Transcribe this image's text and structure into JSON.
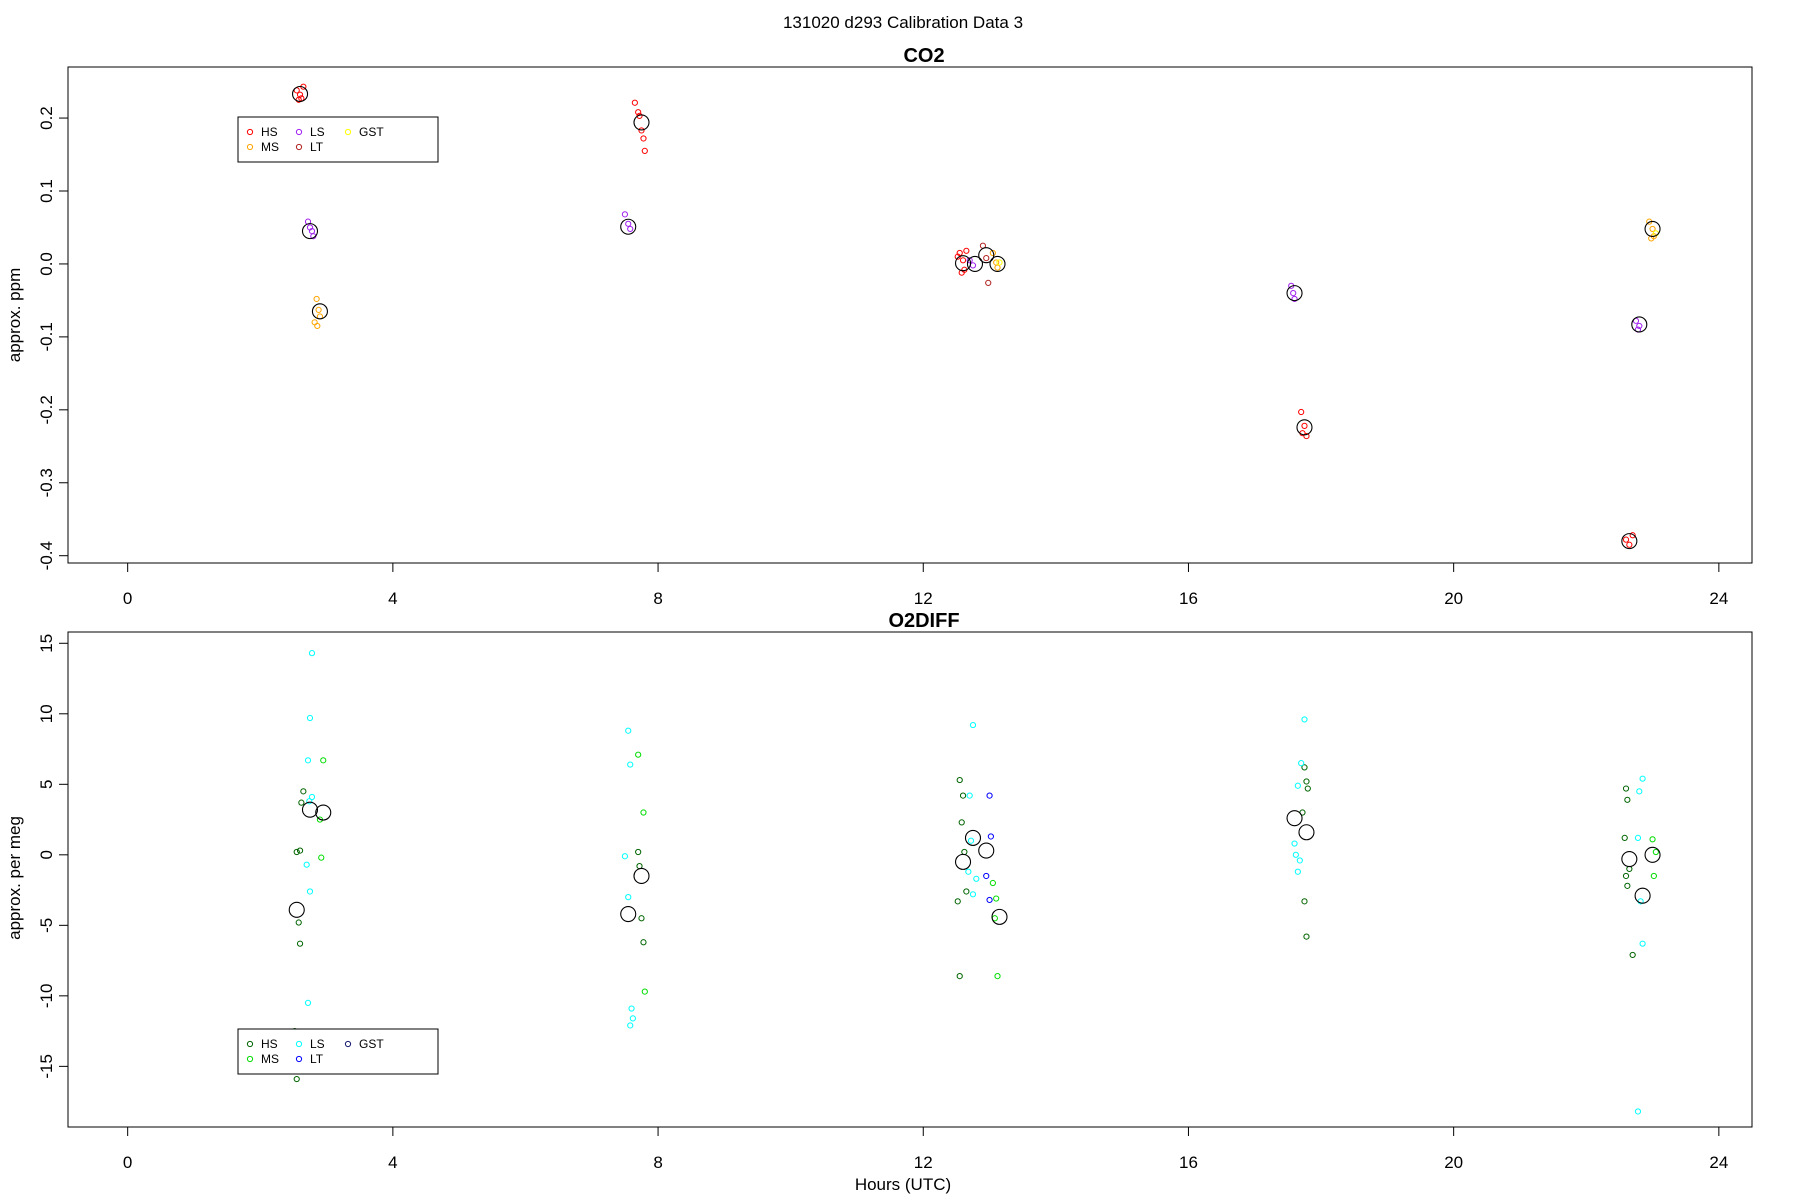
{
  "figure": {
    "title": "131020   d293   Calibration Data 3",
    "xlabel": "Hours (UTC)"
  },
  "chart_data": [
    {
      "type": "scatter",
      "title": "CO2",
      "xlabel": "",
      "ylabel": "approx. ppm",
      "xlim": [
        -0.9,
        24.5
      ],
      "ylim": [
        -0.41,
        0.27
      ],
      "xticks": [
        0,
        4,
        8,
        12,
        16,
        20,
        24
      ],
      "yticks": [
        -0.4,
        -0.3,
        -0.2,
        -0.1,
        0.0,
        0.1,
        0.2
      ],
      "ytick_labels": [
        "-0.4",
        "-0.3",
        "-0.2",
        "-0.1",
        "0.0",
        "0.1",
        "0.2"
      ],
      "legend": {
        "placement": "top-left",
        "entries": [
          {
            "name": "HS",
            "color": "#ff0000"
          },
          {
            "name": "MS",
            "color": "#ffa500"
          },
          {
            "name": "LS",
            "color": "#a020f0"
          },
          {
            "name": "LT",
            "color": "#b22222"
          },
          {
            "name": "GST",
            "color": "#ffff00"
          }
        ]
      },
      "series": [
        {
          "name": "HS",
          "color": "#ff0000",
          "points": [
            [
              2.55,
              0.238
            ],
            [
              2.6,
              0.232
            ],
            [
              2.62,
              0.227
            ],
            [
              2.65,
              0.243
            ],
            [
              2.58,
              0.225
            ],
            [
              7.65,
              0.221
            ],
            [
              7.7,
              0.208
            ],
            [
              7.72,
              0.203
            ],
            [
              7.75,
              0.183
            ],
            [
              7.78,
              0.172
            ],
            [
              7.8,
              0.155
            ],
            [
              12.55,
              0.015
            ],
            [
              12.6,
              0.005
            ],
            [
              12.62,
              -0.008
            ],
            [
              12.58,
              -0.012
            ],
            [
              12.65,
              0.018
            ],
            [
              12.52,
              0.01
            ],
            [
              17.7,
              -0.203
            ],
            [
              17.75,
              -0.222
            ],
            [
              17.72,
              -0.232
            ],
            [
              17.78,
              -0.236
            ],
            [
              22.6,
              -0.378
            ],
            [
              22.65,
              -0.385
            ],
            [
              22.7,
              -0.372
            ]
          ]
        },
        {
          "name": "MS",
          "color": "#ffa500",
          "points": [
            [
              2.85,
              -0.048
            ],
            [
              2.88,
              -0.063
            ],
            [
              2.9,
              -0.072
            ],
            [
              2.82,
              -0.08
            ],
            [
              2.86,
              -0.085
            ],
            [
              13.05,
              0.015
            ],
            [
              13.1,
              0.002
            ],
            [
              13.12,
              -0.005
            ],
            [
              22.95,
              0.058
            ],
            [
              23.0,
              0.048
            ],
            [
              23.02,
              0.038
            ],
            [
              22.98,
              0.035
            ]
          ]
        },
        {
          "name": "LS",
          "color": "#a020f0",
          "points": [
            [
              2.72,
              0.058
            ],
            [
              2.75,
              0.05
            ],
            [
              2.78,
              0.045
            ],
            [
              2.8,
              0.038
            ],
            [
              7.5,
              0.068
            ],
            [
              7.55,
              0.055
            ],
            [
              7.58,
              0.048
            ],
            [
              12.7,
              0.005
            ],
            [
              12.75,
              -0.002
            ],
            [
              17.55,
              -0.03
            ],
            [
              17.58,
              -0.04
            ],
            [
              17.6,
              -0.048
            ],
            [
              22.75,
              -0.078
            ],
            [
              22.8,
              -0.085
            ],
            [
              22.78,
              -0.09
            ]
          ]
        },
        {
          "name": "LT",
          "color": "#b22222",
          "points": [
            [
              12.9,
              0.025
            ],
            [
              12.95,
              0.008
            ],
            [
              12.98,
              -0.026
            ]
          ]
        },
        {
          "name": "GST",
          "color": "#ffff00",
          "points": [
            [
              13.15,
              0.002
            ],
            [
              23.05,
              0.042
            ]
          ]
        },
        {
          "name": "",
          "color": "#000000",
          "big": true,
          "points": [
            [
              2.6,
              0.233
            ],
            [
              2.75,
              0.045
            ],
            [
              2.9,
              -0.065
            ],
            [
              7.55,
              0.051
            ],
            [
              7.75,
              0.194
            ],
            [
              12.6,
              0.001
            ],
            [
              12.78,
              0.0
            ],
            [
              12.95,
              0.012
            ],
            [
              13.12,
              0.0
            ],
            [
              17.6,
              -0.04
            ],
            [
              17.75,
              -0.224
            ],
            [
              22.65,
              -0.38
            ],
            [
              22.8,
              -0.083
            ],
            [
              23.0,
              0.048
            ]
          ]
        }
      ]
    },
    {
      "type": "scatter",
      "title": "O2DIFF",
      "xlabel": "Hours (UTC)",
      "ylabel": "approx. per meg",
      "xlim": [
        -0.9,
        24.5
      ],
      "ylim": [
        -19.3,
        15.8
      ],
      "xticks": [
        0,
        4,
        8,
        12,
        16,
        20,
        24
      ],
      "yticks": [
        -15,
        -10,
        -5,
        0,
        5,
        10,
        15
      ],
      "ytick_labels": [
        "-15",
        "-10",
        "-5",
        "0",
        "5",
        "10",
        "15"
      ],
      "legend": {
        "placement": "bottom-left",
        "entries": [
          {
            "name": "HS",
            "color": "#006400"
          },
          {
            "name": "MS",
            "color": "#00dd00"
          },
          {
            "name": "LS",
            "color": "#00ffff"
          },
          {
            "name": "LT",
            "color": "#0000ff"
          },
          {
            "name": "GST",
            "color": "#191970"
          }
        ]
      },
      "series": [
        {
          "name": "HS",
          "color": "#006400",
          "points": [
            [
              2.55,
              0.2
            ],
            [
              2.6,
              0.3
            ],
            [
              2.62,
              3.7
            ],
            [
              2.65,
              4.5
            ],
            [
              2.58,
              -4.8
            ],
            [
              2.6,
              -6.3
            ],
            [
              2.52,
              -12.5
            ],
            [
              2.55,
              -15.9
            ],
            [
              7.7,
              0.2
            ],
            [
              7.72,
              -0.8
            ],
            [
              7.75,
              -4.5
            ],
            [
              7.78,
              -6.2
            ],
            [
              12.55,
              5.3
            ],
            [
              12.6,
              4.2
            ],
            [
              12.58,
              2.3
            ],
            [
              12.62,
              0.2
            ],
            [
              12.65,
              -2.6
            ],
            [
              12.52,
              -3.3
            ],
            [
              12.55,
              -8.6
            ],
            [
              17.75,
              6.2
            ],
            [
              17.78,
              5.2
            ],
            [
              17.8,
              4.7
            ],
            [
              17.72,
              3.0
            ],
            [
              17.75,
              -3.3
            ],
            [
              17.78,
              -5.8
            ],
            [
              22.6,
              4.7
            ],
            [
              22.62,
              3.9
            ],
            [
              22.58,
              1.2
            ],
            [
              22.65,
              -1.0
            ],
            [
              22.6,
              -1.5
            ],
            [
              22.62,
              -2.2
            ],
            [
              22.7,
              -7.1
            ]
          ]
        },
        {
          "name": "MS",
          "color": "#00dd00",
          "points": [
            [
              2.95,
              6.7
            ],
            [
              2.9,
              2.5
            ],
            [
              2.92,
              -0.2
            ],
            [
              7.7,
              7.1
            ],
            [
              7.78,
              3.0
            ],
            [
              7.8,
              -9.7
            ],
            [
              13.05,
              -2.0
            ],
            [
              13.1,
              -3.1
            ],
            [
              13.08,
              -4.5
            ],
            [
              13.12,
              -8.6
            ],
            [
              23.0,
              1.1
            ],
            [
              23.05,
              0.2
            ],
            [
              23.02,
              -1.5
            ]
          ]
        },
        {
          "name": "LS",
          "color": "#00ffff",
          "points": [
            [
              2.78,
              14.3
            ],
            [
              2.75,
              9.7
            ],
            [
              2.72,
              6.7
            ],
            [
              2.78,
              4.1
            ],
            [
              2.74,
              3.8
            ],
            [
              2.7,
              -0.7
            ],
            [
              2.75,
              -2.6
            ],
            [
              2.72,
              -10.5
            ],
            [
              7.55,
              8.8
            ],
            [
              7.58,
              6.4
            ],
            [
              7.5,
              -0.1
            ],
            [
              7.55,
              -3.0
            ],
            [
              7.6,
              -10.9
            ],
            [
              7.62,
              -11.6
            ],
            [
              7.58,
              -12.1
            ],
            [
              12.75,
              9.2
            ],
            [
              12.7,
              4.2
            ],
            [
              12.72,
              1.0
            ],
            [
              12.68,
              -1.2
            ],
            [
              12.75,
              -2.8
            ],
            [
              12.8,
              -1.7
            ],
            [
              17.75,
              9.6
            ],
            [
              17.7,
              6.5
            ],
            [
              17.65,
              4.9
            ],
            [
              17.6,
              0.8
            ],
            [
              17.62,
              0.0
            ],
            [
              17.68,
              -0.4
            ],
            [
              17.65,
              -1.2
            ],
            [
              22.85,
              5.4
            ],
            [
              22.8,
              4.5
            ],
            [
              22.78,
              1.2
            ],
            [
              22.82,
              -3.3
            ],
            [
              22.85,
              -6.3
            ],
            [
              22.78,
              -18.2
            ]
          ]
        },
        {
          "name": "LT",
          "color": "#0000ff",
          "points": [
            [
              13.0,
              4.2
            ],
            [
              13.02,
              1.3
            ],
            [
              12.95,
              -1.5
            ],
            [
              13.0,
              -3.2
            ]
          ]
        },
        {
          "name": "",
          "color": "#000000",
          "big": true,
          "points": [
            [
              2.55,
              -3.9
            ],
            [
              2.75,
              3.2
            ],
            [
              2.95,
              3.0
            ],
            [
              7.55,
              -4.2
            ],
            [
              7.75,
              -1.5
            ],
            [
              12.6,
              -0.5
            ],
            [
              12.75,
              1.2
            ],
            [
              12.95,
              0.3
            ],
            [
              13.15,
              -4.4
            ],
            [
              17.6,
              2.6
            ],
            [
              17.78,
              1.6
            ],
            [
              22.65,
              -0.3
            ],
            [
              22.85,
              -2.9
            ],
            [
              23.0,
              0.0
            ]
          ]
        }
      ]
    }
  ]
}
